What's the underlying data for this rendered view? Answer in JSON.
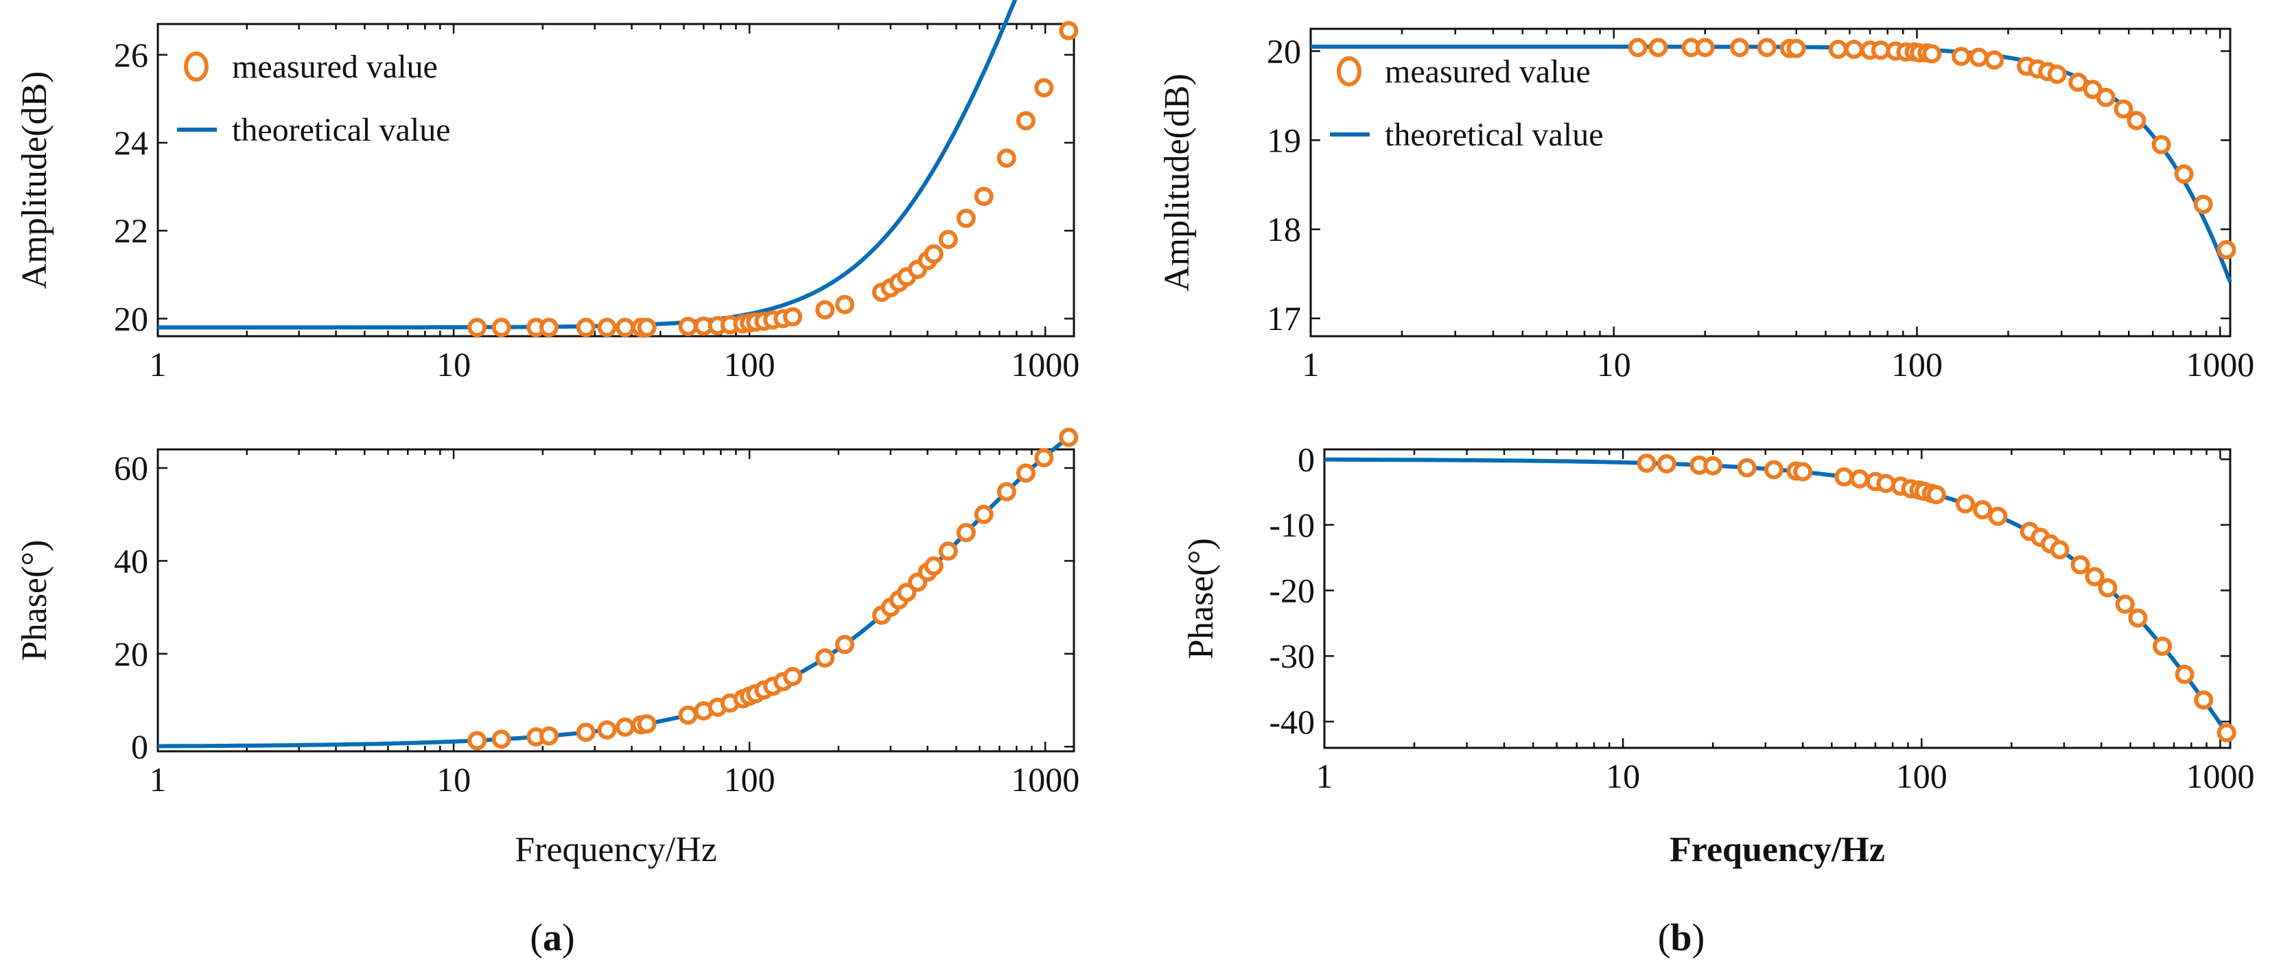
{
  "figure": {
    "panel_labels": {
      "a": {
        "open": "(",
        "letter": "a",
        "close": ")"
      },
      "b": {
        "open": "(",
        "letter": "b",
        "close": ")"
      }
    }
  },
  "colors": {
    "theory": "#0A6CB5",
    "measured": "#EE7D22"
  },
  "chart_data": [
    {
      "id": "a-amplitude",
      "type": "line",
      "xscale": "log",
      "xlim": [
        1,
        1250
      ],
      "ylim": [
        19.6,
        26.7
      ],
      "xticks": [
        1,
        10,
        100,
        1000
      ],
      "xtick_labels": [
        "1",
        "10",
        "100",
        "1000"
      ],
      "yticks": [
        20,
        22,
        24,
        26
      ],
      "ytick_labels": [
        "20",
        "22",
        "24",
        "26"
      ],
      "ylabel": "Amplitude(dB)",
      "xlabel": "",
      "legend": {
        "measured": "measured value",
        "theory": "theoretical value",
        "placement": "top-left"
      },
      "model": "lead",
      "model_params": {
        "base": 19.8,
        "corner_hz": 370
      },
      "measured": {
        "x": [
          12,
          14.5,
          19,
          21,
          28,
          33,
          38,
          43,
          45,
          62,
          70,
          78,
          86,
          95,
          100,
          105,
          112,
          120,
          130,
          140,
          180,
          210,
          280,
          300,
          320,
          340,
          370,
          400,
          420,
          470,
          540,
          620,
          740,
          860,
          990,
          1200
        ],
        "y": [
          19.8,
          19.8,
          19.8,
          19.8,
          19.8,
          19.8,
          19.8,
          19.8,
          19.8,
          19.82,
          19.83,
          19.84,
          19.86,
          19.88,
          19.9,
          19.92,
          19.94,
          19.97,
          20.0,
          20.04,
          20.2,
          20.32,
          20.6,
          20.7,
          20.82,
          20.95,
          21.12,
          21.32,
          21.47,
          21.8,
          22.28,
          22.78,
          23.65,
          24.5,
          25.25,
          26.55
        ]
      }
    },
    {
      "id": "a-phase",
      "type": "line",
      "xscale": "log",
      "xlim": [
        1,
        1250
      ],
      "ylim": [
        -1,
        64
      ],
      "xticks": [
        1,
        10,
        100,
        1000
      ],
      "xtick_labels": [
        "1",
        "10",
        "100",
        "1000"
      ],
      "yticks": [
        0,
        20,
        40,
        60
      ],
      "ytick_labels": [
        "0",
        "20",
        "40",
        "60"
      ],
      "ylabel": "Phase(°)",
      "xlabel": "Frequency/Hz",
      "model": "lead-phase",
      "model_params": {
        "corner_hz": 520
      },
      "measured": {
        "x": [
          12,
          14.5,
          19,
          21,
          28,
          33,
          38,
          43,
          45,
          62,
          70,
          78,
          86,
          95,
          100,
          105,
          112,
          120,
          130,
          140,
          180,
          210,
          280,
          300,
          320,
          340,
          370,
          400,
          420,
          470,
          540,
          620,
          740,
          860,
          990,
          1200
        ],
        "y": [
          1.3,
          1.6,
          2.1,
          2.3,
          3.1,
          3.6,
          4.2,
          4.7,
          4.9,
          6.8,
          7.7,
          8.5,
          9.4,
          10.3,
          10.9,
          11.4,
          12.2,
          13.0,
          14.0,
          15.1,
          19.1,
          22.0,
          28.3,
          30.0,
          31.6,
          33.2,
          35.4,
          37.6,
          38.9,
          42.1,
          46.1,
          50.0,
          54.9,
          58.9,
          62.2,
          66.6
        ]
      }
    },
    {
      "id": "b-amplitude",
      "type": "line",
      "xscale": "log",
      "xlim": [
        1,
        1080
      ],
      "ylim": [
        16.8,
        20.25
      ],
      "xticks": [
        1,
        10,
        100,
        1000
      ],
      "xtick_labels": [
        "1",
        "10",
        "100",
        "1000"
      ],
      "yticks": [
        17,
        18,
        19,
        20
      ],
      "ytick_labels": [
        "17",
        "18",
        "19",
        "20"
      ],
      "ylabel": "Amplitude(dB)",
      "xlabel": "",
      "legend": {
        "measured": "measured value",
        "theory": "theoretical value",
        "placement": "top-left"
      },
      "model": "lag",
      "model_params": {
        "base": 20.05,
        "corner_hz": 1180
      },
      "measured": {
        "x": [
          12,
          14,
          18,
          20,
          26,
          32,
          38,
          40,
          55,
          62,
          70,
          76,
          85,
          92,
          98,
          102,
          108,
          112,
          140,
          160,
          180,
          230,
          250,
          270,
          290,
          340,
          380,
          420,
          480,
          530,
          640,
          760,
          880,
          1050
        ],
        "y": [
          20.04,
          20.04,
          20.04,
          20.04,
          20.04,
          20.04,
          20.03,
          20.03,
          20.02,
          20.02,
          20.01,
          20.01,
          20.0,
          19.99,
          19.99,
          19.98,
          19.98,
          19.97,
          19.94,
          19.93,
          19.9,
          19.83,
          19.8,
          19.77,
          19.74,
          19.65,
          19.57,
          19.48,
          19.35,
          19.22,
          18.95,
          18.62,
          18.28,
          17.77
        ]
      }
    },
    {
      "id": "b-phase",
      "type": "line",
      "xscale": "log",
      "xlim": [
        1,
        1080
      ],
      "ylim": [
        -44,
        1.5
      ],
      "xticks": [
        1,
        10,
        100,
        1000
      ],
      "xtick_labels": [
        "1",
        "10",
        "100",
        "1000"
      ],
      "yticks": [
        0,
        -10,
        -20,
        -30,
        -40
      ],
      "ytick_labels": [
        "0",
        "-10",
        "-20",
        "-30",
        "-40"
      ],
      "ylabel": "Phase(°)",
      "xlabel": "Frequency/Hz",
      "xlabel_bold": true,
      "model": "lag-phase",
      "model_params": {
        "corner_hz": 1180
      },
      "measured": {
        "x": [
          12,
          14,
          18,
          20,
          26,
          32,
          38,
          40,
          55,
          62,
          70,
          76,
          85,
          92,
          98,
          102,
          108,
          112,
          140,
          160,
          180,
          230,
          250,
          270,
          290,
          340,
          380,
          420,
          480,
          530,
          640,
          760,
          880,
          1050
        ],
        "y": [
          -0.6,
          -0.7,
          -0.9,
          -1.0,
          -1.3,
          -1.6,
          -1.8,
          -1.9,
          -2.7,
          -3.0,
          -3.4,
          -3.7,
          -4.1,
          -4.5,
          -4.7,
          -4.9,
          -5.2,
          -5.4,
          -6.8,
          -7.7,
          -8.7,
          -11.0,
          -11.9,
          -12.9,
          -13.8,
          -16.1,
          -17.9,
          -19.6,
          -22.1,
          -24.2,
          -28.5,
          -32.8,
          -36.7,
          -41.7
        ]
      }
    }
  ]
}
